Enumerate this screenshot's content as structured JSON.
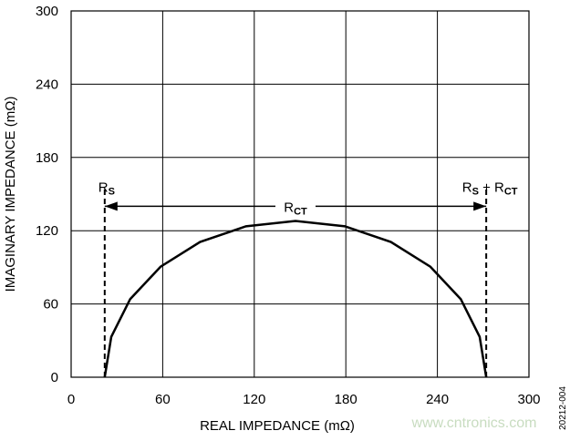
{
  "chart_data": {
    "type": "line",
    "xlabel": "REAL IMPEDANCE (mΩ)",
    "ylabel": "IMAGINARY IMPEDANCE (mΩ)",
    "xlim": [
      0,
      300
    ],
    "ylim": [
      0,
      300
    ],
    "xticks": [
      0,
      60,
      120,
      180,
      240,
      300
    ],
    "yticks": [
      0,
      60,
      120,
      180,
      240,
      300
    ],
    "grid": true,
    "series": [
      {
        "color": "#000000",
        "x": [
          22,
          26.3,
          38.7,
          58.6,
          84.5,
          114.6,
          147,
          179.4,
          209.5,
          235.4,
          255.3,
          267.7,
          272
        ],
        "values": [
          0,
          33.1,
          64,
          90.5,
          110.8,
          123.6,
          128,
          123.6,
          110.8,
          90.5,
          64,
          33.1,
          0
        ]
      }
    ],
    "markers": {
      "x": [
        22,
        272
      ],
      "height": 155,
      "arrow_y": 140
    },
    "annotations": [
      {
        "parts": [
          {
            "text": "R"
          },
          {
            "text": "S",
            "sub": true
          }
        ]
      },
      {
        "parts": [
          {
            "text": "R"
          },
          {
            "text": "CT",
            "sub": true
          }
        ]
      },
      {
        "parts": [
          {
            "text": "R"
          },
          {
            "text": "S",
            "sub": true
          },
          {
            "text": " + R"
          },
          {
            "text": "CT",
            "sub": true
          }
        ]
      }
    ],
    "watermark": "www.cntronics.com",
    "figure_id": "20212-004"
  }
}
